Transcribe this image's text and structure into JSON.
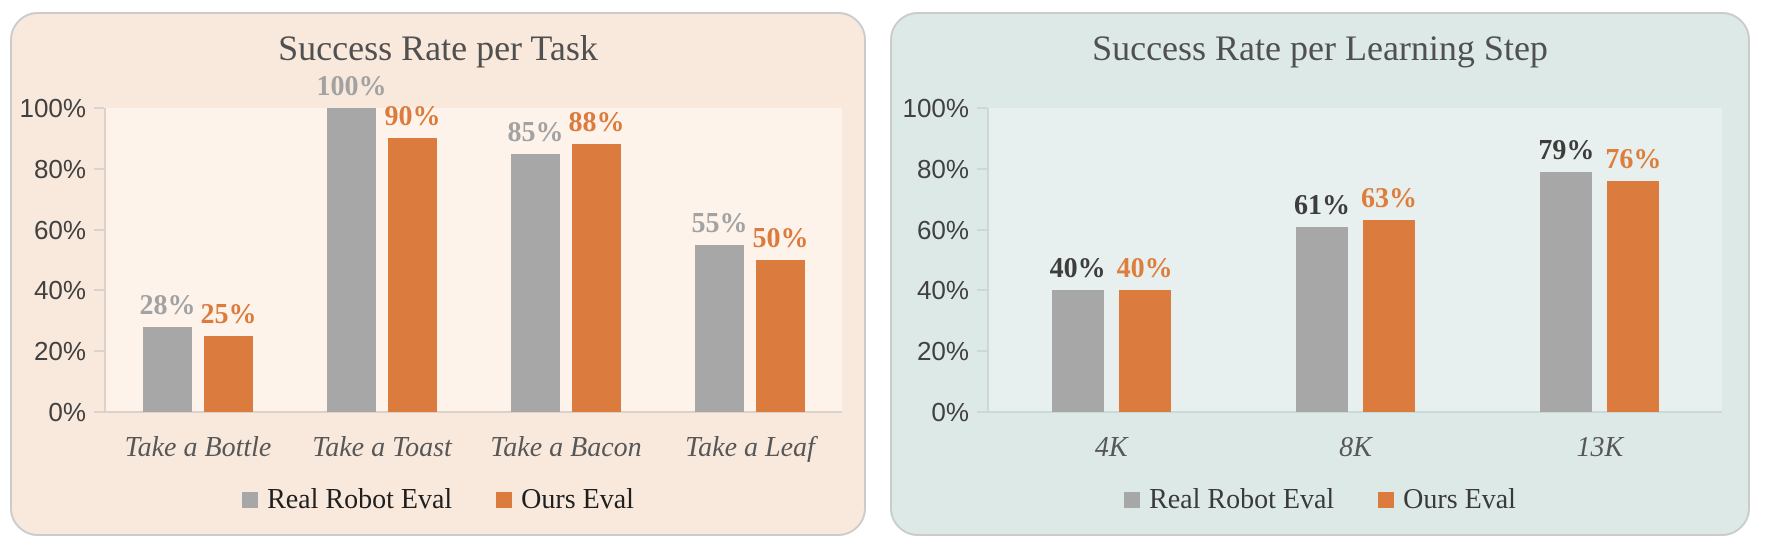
{
  "figure": {
    "background": "#ffffff"
  },
  "chart_data": [
    {
      "type": "bar",
      "title": "Success Rate per Task",
      "categories": [
        "Take a Bottle",
        "Take a Toast",
        "Take a Bacon",
        "Take a Leaf"
      ],
      "series": [
        {
          "name": "Real Robot Eval",
          "values": [
            28,
            100,
            85,
            55
          ],
          "labels": [
            "28%",
            "100%",
            "85%",
            "55%"
          ],
          "color": "#a7a7a7",
          "label_color": "#a2a2a2"
        },
        {
          "name": "Ours Eval",
          "values": [
            25,
            90,
            88,
            50
          ],
          "labels": [
            "25%",
            "90%",
            "88%",
            "50%"
          ],
          "color": "#dc7b3e",
          "label_color": "#dc7b3e"
        }
      ],
      "ylim": [
        0,
        100
      ],
      "y_ticks": [
        "0%",
        "20%",
        "40%",
        "60%",
        "80%",
        "100%"
      ],
      "grid": false,
      "legend_position": "bottom",
      "style": {
        "card_bg": "#f9e9dd",
        "plot_bg": "#fdf3eb",
        "axis_color": "#dcd2c9",
        "tick_color": "#414141",
        "title_color": "#505050",
        "xlabel_color": "#575757",
        "legend_text_color": "#1f1f1f",
        "card_border": "#cbcbcb"
      }
    },
    {
      "type": "bar",
      "title": "Success Rate per Learning Step",
      "categories": [
        "4K",
        "8K",
        "13K"
      ],
      "series": [
        {
          "name": "Real Robot Eval",
          "values": [
            40,
            61,
            79
          ],
          "labels": [
            "40%",
            "61%",
            "79%"
          ],
          "color": "#a7a7a7",
          "label_color": "#3d3d3d"
        },
        {
          "name": "Ours Eval",
          "values": [
            40,
            63,
            76
          ],
          "labels": [
            "40%",
            "63%",
            "76%"
          ],
          "color": "#dc7b3e",
          "label_color": "#de7e3c"
        }
      ],
      "ylim": [
        0,
        100
      ],
      "y_ticks": [
        "0%",
        "20%",
        "40%",
        "60%",
        "80%",
        "100%"
      ],
      "grid": false,
      "legend_position": "bottom",
      "style": {
        "card_bg": "#dde9e7",
        "plot_bg": "#e7f0ee",
        "axis_color": "#cbd8d6",
        "tick_color": "#414141",
        "title_color": "#505050",
        "xlabel_color": "#575757",
        "legend_text_color": "#3a3a3a",
        "card_border": "#cbcbcb"
      }
    }
  ]
}
